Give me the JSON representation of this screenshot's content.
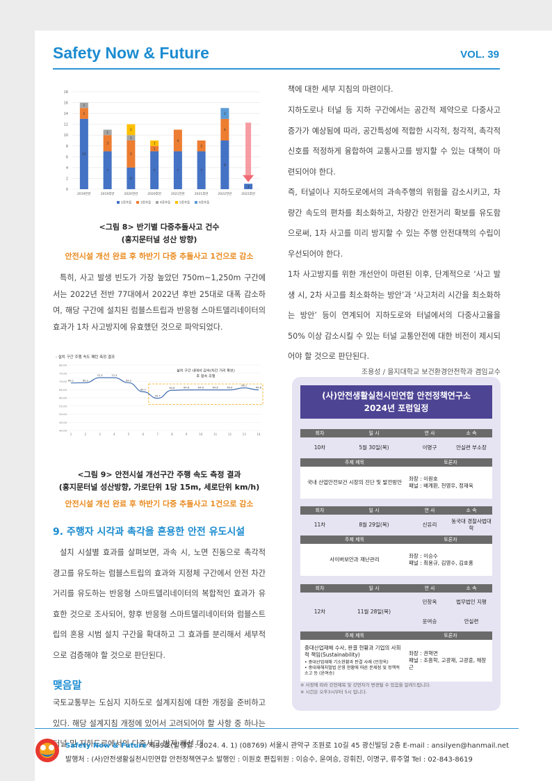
{
  "header": {
    "title": "Safety Now & Future",
    "volume": "VOL. 39"
  },
  "figure8": {
    "caption_line1": "<그림 8> 반기별 다중추돌사고 건수",
    "caption_line2": "(홍지문터널 성산 방향)",
    "subcaption": "안전시설 개선 완료 후 하반기 다중 추돌사고 1건으로 감소"
  },
  "para1": "특히, 사고 발생 빈도가 가장 높았던 750m~1,250m 구간에서는 2022년 전반 77대에서 2022년 후반 25대로 대폭 감소하여, 해당 구간에 설치된 럼블스트립과 반응형 스마트델리네이터의 효과가 1차 사고방지에 유효했던 것으로 파악되었다.",
  "figure9": {
    "caption_line1": "<그림 9> 안전시설 개선구간 주행 속도 측정 결과",
    "caption_line2": "(홍지문터널 성산방향, 가로단위 1당 15m, 세로단위 km/h)",
    "subcaption": "안전시설 개선 완료 후 하반기 다중 추돌사고 1건으로 감소"
  },
  "section9": {
    "heading": "9. 주행자 시각과 촉각을 혼용한 안전 유도시설",
    "body": "설치 시설별 효과를 살펴보면, 과속 시, 노면 진동으로 촉각적 경고를 유도하는 럼블스트립의 효과와 지정체 구간에서 안전 차간거리를 유도하는 반응형 스마트델리네이터의 복합적인 효과가 유효한 것으로 조사되어, 향후 반응형 스마트델리네이터와 럼블스트립의 혼용 시범 설치 구간을 확대하고 그 효과를 분리해서 세부적으로 검증해야 할 것으로 판단된다."
  },
  "conclusion": {
    "heading": "맺음말",
    "body": "국토교통부는 도심지 지하도로 설계지침에 대한 개정을 준비하고 있다. 해당 설계지침 개정에 있어서 고려되어야 할 사항 중 하나는 터널 및 지하도로에서의 다중사고 방지 개선 대"
  },
  "right_text": {
    "p1": "책에 대한 세부 지침의 마련이다.",
    "p2": "지하도로나 터널 등 지하 구간에서는 공간적 제약으로 다중사고 증가가 예상됨에 따라, 공간특성에 적합한 시각적, 청각적, 촉각적 신호를 적정하게 융합하여 교통사고를 방지할 수 있는 대책이 마련되어야 한다.",
    "p3": "즉, 터널이나 지하도로에서의 과속주행의 위험을 감소시키고, 차량간 속도의 편차를 최소화하고, 차량간 안전거리 확보를 유도함으로써, 1차 사고를 미리 방지할 수 있는 주행 안전대책의 수립이 우선되어야 한다.",
    "p4": "1차 사고방지를 위한 개선안이 마련된 이후, 단계적으로 ‘사고 발생 시, 2차 사고를 최소화하는 방안’과 ‘사고처리 시간을 최소화하는 방안’ 등이 연계되어 지하도로와 터널에서의 다중사고율을 50% 이상 감소시킬 수 있는 터널 교통안전에 대한 비전이 제시되어야 할 것으로 판단된다.",
    "author": "조용성 / 을지대학교 보건환경안전학과 겸임교수"
  },
  "forum": {
    "title_line1": "(사)안전생활실천시민연합 안전정책연구소",
    "title_line2": "2024년 포럼일정",
    "headers": {
      "round": "회차",
      "date": "일 시",
      "speaker": "연 사",
      "affiliation": "소 속",
      "topic": "주제 제목",
      "discussion": "토론자"
    },
    "sessions": [
      {
        "round": "10차",
        "date": "5월 30일(목)",
        "speaker": "이명구",
        "affiliation": "안실련 부소장",
        "topic": "국내 산업안전보건 시장의 진단 및 발전방안",
        "chair": "좌장 : 이원호",
        "panel": "패널 : 배계환, 천영우, 정재욱"
      },
      {
        "round": "11차",
        "date": "8월 29일(목)",
        "speaker": "신유리",
        "affiliation": "동국대 경찰사법대학",
        "topic": "사이버보안과 재난관리",
        "chair": "좌장 : 이승수",
        "panel": "패널 : 최용규, 김영수, 김호홍"
      },
      {
        "round": "12차",
        "date": "11월 28일(목)",
        "speaker": "민창옥",
        "affiliation": "법무법인 지평",
        "speaker2": "윤여승",
        "affiliation2": "안실련",
        "topic": "중대산업재해 수사, 판결 현황과 기업의 사회적 책임(Sustainability)",
        "bullet1": "• 중대산업재해 기소현황과 판결 사례 (민창옥)",
        "bullet2": "• 중대재해처벌법 운영 현황에 따른 문제점 및 정책적 소고 등 (윤여승)",
        "chair": "좌장 : 권혁면",
        "panel": "패널 : 조흥학, 고광재, 고광훈, 채창근"
      }
    ],
    "note1": "※ 사정에 따라 강연제목 및 강연자가 변경될 수 있음을 알려드립니다.",
    "note2": "※ 시간은 오후3시부터 5시 입니다."
  },
  "footer": {
    "brand": "Safety Now & Future",
    "line1_rest": " 제39호(발행일 : 2024. 4. 1)   (08769) 서울시 관악구 조원로 10길 45 광신빌딩 2층   E-mail : ansilyen@hanmail.net",
    "line2": "발행처 : (사)안전생활실천시민연합 안전정책연구소   발행인 : 이원호   편집위원 : 이승수, 윤여승, 강휘진, 이명구, 류주열   Tel : 02-843-8619"
  },
  "chart_data": [
    {
      "type": "bar",
      "stacked": true,
      "categories": [
        "2019전반",
        "2019후반",
        "2020전반",
        "2020후반",
        "2021전반",
        "2021후반",
        "2022전반",
        "2022후반"
      ],
      "series": [
        {
          "name": "2중추돌",
          "color": "#4472c4",
          "values": [
            13,
            7,
            4,
            7,
            7,
            7,
            9,
            1
          ]
        },
        {
          "name": "3중추돌",
          "color": "#ed7d31",
          "values": [
            2,
            3,
            5,
            1,
            4,
            2,
            4,
            0
          ]
        },
        {
          "name": "4중추돌",
          "color": "#a5a5a5",
          "values": [
            1,
            1,
            1,
            0,
            0,
            0,
            0,
            0
          ]
        },
        {
          "name": "5중추돌",
          "color": "#ffc000",
          "values": [
            0,
            0,
            2,
            1,
            0,
            0,
            0,
            0
          ]
        },
        {
          "name": "6중추돌",
          "color": "#5b9bd5",
          "values": [
            0,
            0,
            0,
            0,
            0,
            0,
            2,
            0
          ]
        }
      ],
      "ylim": [
        0,
        18
      ],
      "yticks": [
        0,
        2,
        4,
        6,
        8,
        10,
        12,
        14,
        16,
        18
      ],
      "legend": "bottom",
      "annotation": "decrease-arrow"
    },
    {
      "type": "line",
      "title": "- 설치 구간 주행 속도 패턴 측정 결과",
      "annotation": "설치 구간 내에서 감속(차간 거리 확보) 후 정속 주행",
      "x": [
        1,
        2,
        3,
        4,
        5,
        6,
        7,
        8,
        9,
        10,
        11,
        12,
        13,
        14
      ],
      "values": [
        69.1,
        69.2,
        72.3,
        72.3,
        69.2,
        63.7,
        59.7,
        64.6,
        64.8,
        64.8,
        64.8,
        64.8,
        66.1,
        64.8
      ],
      "ylim": [
        40,
        80
      ],
      "yticks": [
        "40.00",
        "45.00",
        "50.00",
        "55.00",
        "60.00",
        "65.00",
        "70.00",
        "75.00",
        "80.00"
      ],
      "color": "#2f5fa8"
    }
  ]
}
